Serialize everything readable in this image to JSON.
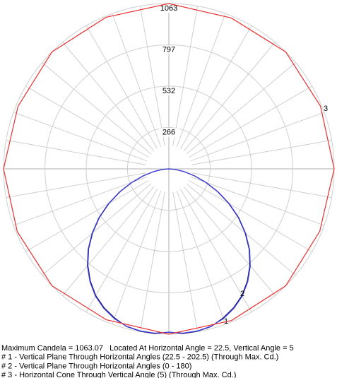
{
  "chart_data": {
    "type": "polar",
    "rlim": [
      0,
      1063
    ],
    "rticks": [
      266,
      532,
      797,
      1063
    ],
    "spoke_step": 10,
    "series": [
      {
        "name": "1",
        "color": "#1a1a70",
        "angles": [
          90,
          95,
          100,
          105,
          110,
          115,
          120,
          125,
          130,
          135,
          140,
          145,
          150,
          155,
          160,
          165,
          170,
          175,
          180,
          185,
          190,
          195,
          200,
          205,
          210,
          215,
          220,
          225,
          230,
          235,
          240,
          245,
          250,
          255,
          260,
          265,
          270
        ],
        "values": [
          0,
          40,
          95,
          165,
          250,
          345,
          445,
          545,
          640,
          730,
          810,
          880,
          940,
          985,
          1020,
          1050,
          1060,
          1063,
          1050,
          1063,
          1060,
          1050,
          1020,
          985,
          940,
          880,
          810,
          730,
          640,
          545,
          445,
          345,
          250,
          165,
          95,
          40,
          0
        ]
      },
      {
        "name": "2",
        "color": "#3c3cdc",
        "angles": [
          90,
          95,
          100,
          105,
          110,
          115,
          120,
          125,
          130,
          135,
          140,
          145,
          150,
          155,
          160,
          165,
          170,
          175,
          180,
          185,
          190,
          195,
          200,
          205,
          210,
          215,
          220,
          225,
          230,
          235,
          240,
          245,
          250,
          255,
          260,
          265,
          270
        ],
        "values": [
          0,
          42,
          98,
          170,
          255,
          350,
          450,
          550,
          645,
          735,
          815,
          885,
          945,
          990,
          1025,
          1048,
          1058,
          1060,
          1050,
          1060,
          1058,
          1048,
          1025,
          990,
          945,
          885,
          815,
          735,
          645,
          550,
          450,
          350,
          255,
          170,
          98,
          42,
          0
        ]
      },
      {
        "name": "3",
        "color": "#e83030",
        "closed": true,
        "angles": [
          0,
          22.5,
          45,
          67.5,
          90,
          112.5,
          135,
          157.5,
          180,
          202.5,
          225,
          247.5,
          270,
          292.5,
          315,
          337.5
        ],
        "values": [
          1063,
          1050,
          1063,
          1055,
          1063,
          1050,
          1063,
          1055,
          1063,
          1050,
          1063,
          1055,
          1063,
          1050,
          1063,
          1055
        ]
      }
    ],
    "notes": [
      "Maximum Candela = 1063.07   Located At Horizontal Angle = 22.5, Vertical Angle = 5",
      "# 1 - Vertical Plane Through Horizontal Angles (22.5 - 202.5) (Through Max. Cd.)",
      "# 2 - Vertical Plane Through Horizontal Angles (0 - 180)",
      "# 3 - Horizontal Cone Through Vertical Angle (5) (Through Max. Cd.)"
    ]
  }
}
